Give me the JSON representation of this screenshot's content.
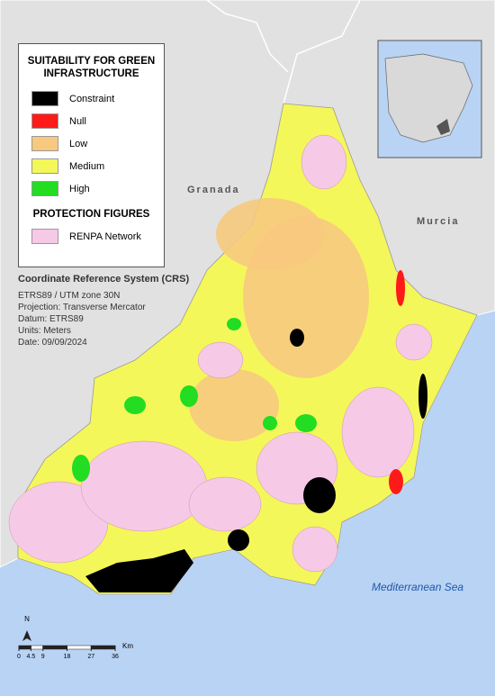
{
  "legend": {
    "title": "SUITABILITY FOR GREEN INFRASTRUCTURE",
    "items": [
      {
        "label": "Constraint",
        "color": "#000000"
      },
      {
        "label": "Null",
        "color": "#ff1a1a"
      },
      {
        "label": "Low",
        "color": "#f7c97e"
      },
      {
        "label": "Medium",
        "color": "#f4f75a"
      },
      {
        "label": "High",
        "color": "#22dd22"
      }
    ],
    "protection_title": "PROTECTION FIGURES",
    "protection_items": [
      {
        "label": "RENPA Network",
        "color": "#f6c9e6"
      }
    ]
  },
  "crs": {
    "title": "Coordinate Reference System (CRS)",
    "lines": [
      "ETRS89 / UTM zone 30N",
      "Projection: Transverse Mercator",
      "Datum: ETRS89",
      "Units: Meters",
      "Date: 09/09/2024"
    ]
  },
  "places": {
    "granada": "Granada",
    "murcia": "Murcia",
    "sea": "Mediterranean Sea"
  },
  "north": "N",
  "scale": {
    "ticks": [
      0,
      4.5,
      9,
      18,
      27,
      36
    ],
    "unit": "Km"
  }
}
